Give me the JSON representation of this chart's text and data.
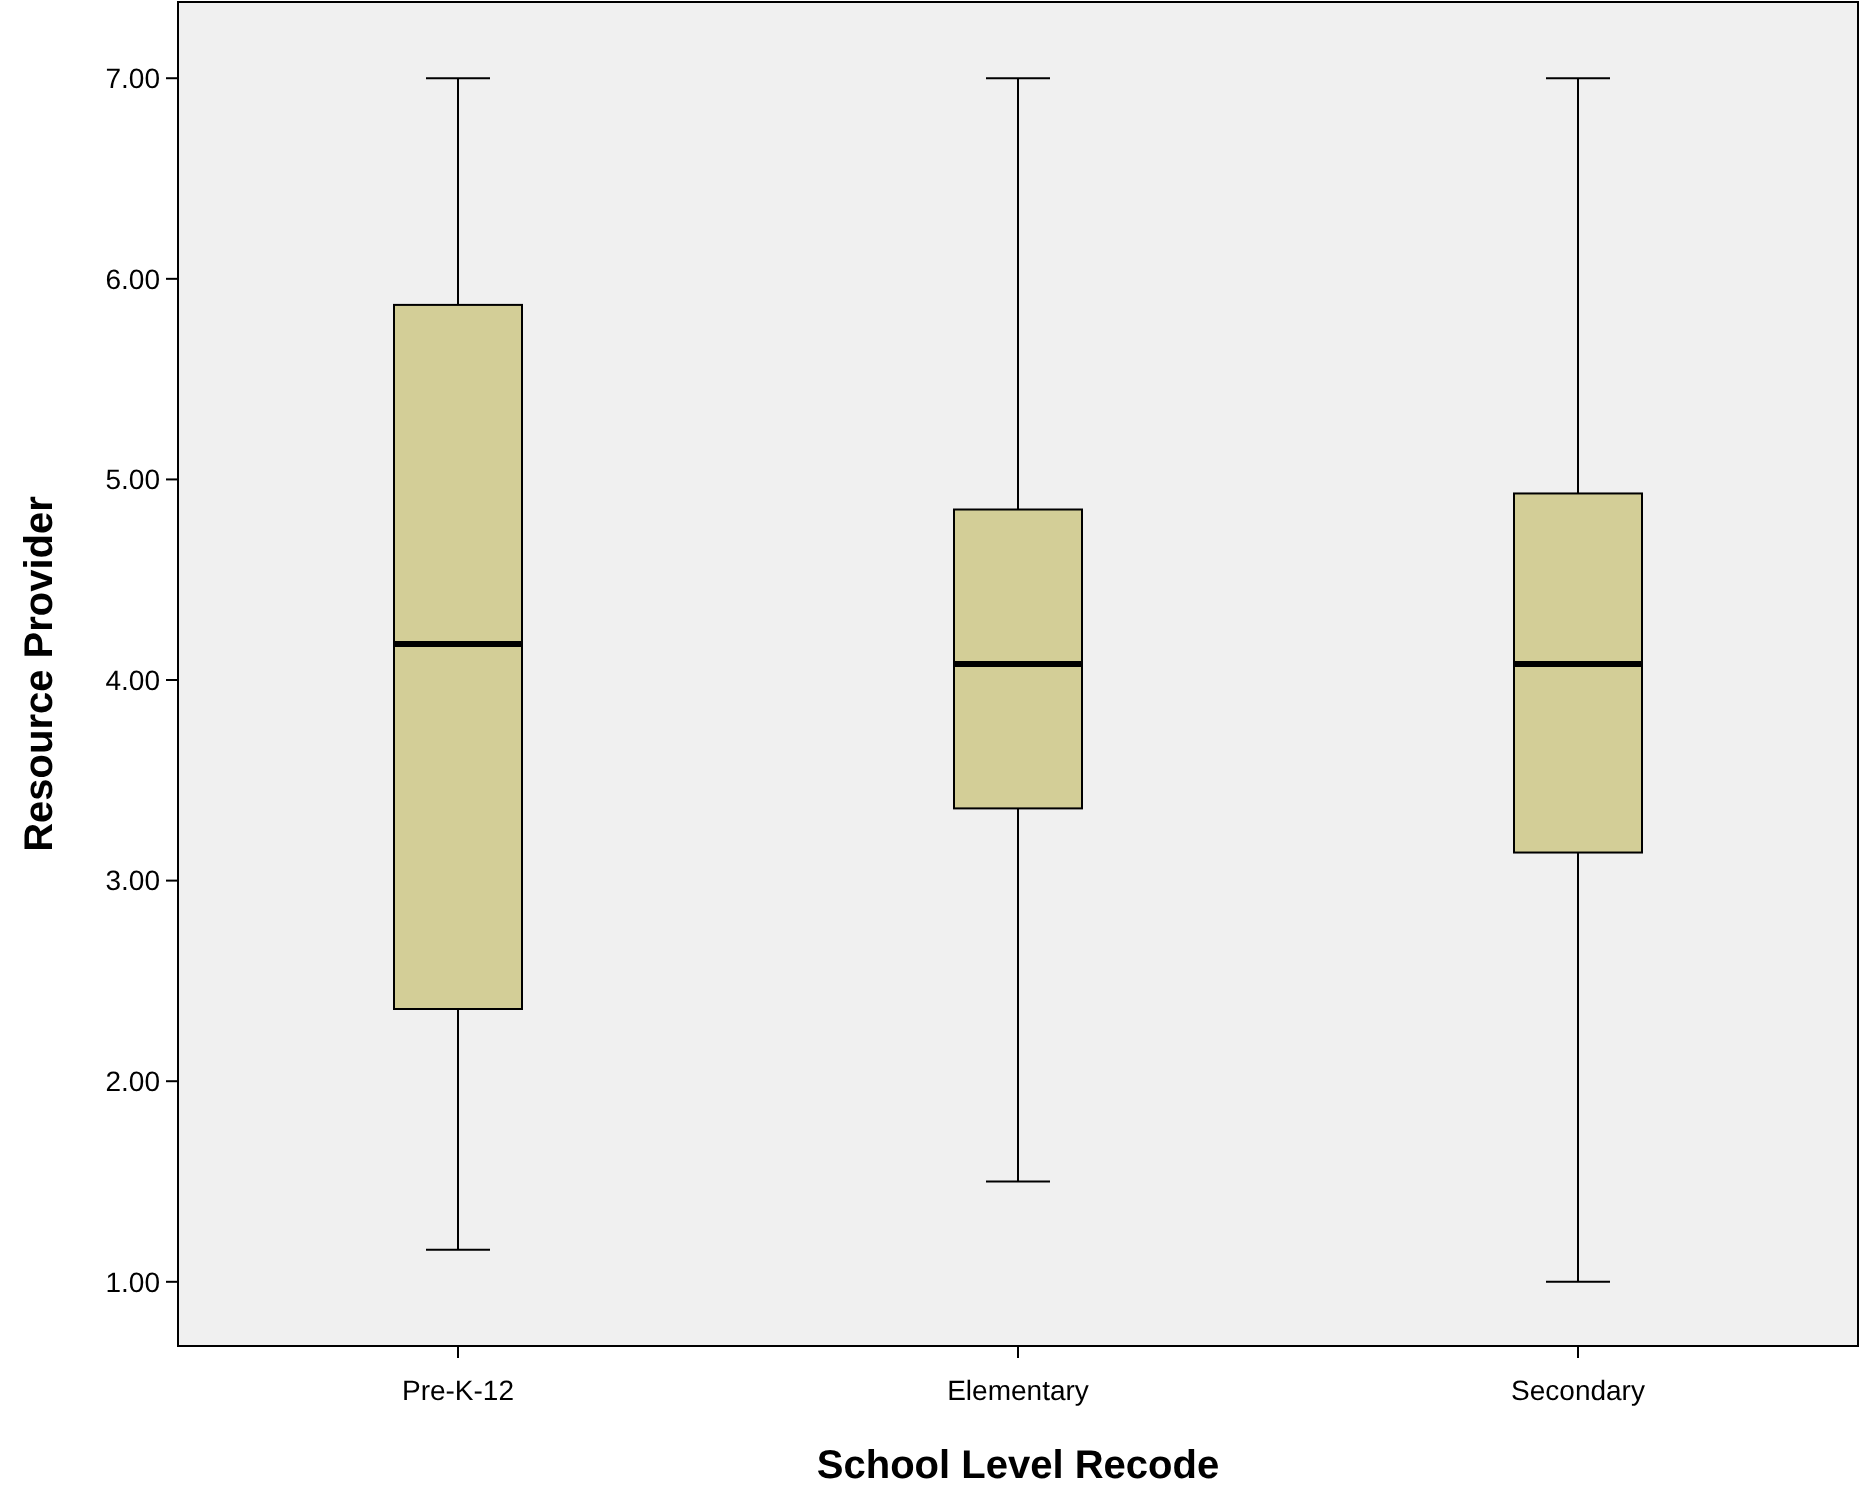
{
  "chart_data": {
    "type": "box",
    "xlabel": "School Level Recode",
    "ylabel": "Resource Provider",
    "categories": [
      "Pre-K-12",
      "Elementary",
      "Secondary"
    ],
    "boxes": [
      {
        "low": 1.16,
        "q1": 2.36,
        "median": 4.18,
        "q3": 5.87,
        "high": 7
      },
      {
        "low": 1.5,
        "q1": 3.36,
        "median": 4.08,
        "q3": 4.85,
        "high": 7
      },
      {
        "low": 1,
        "q1": 3.14,
        "median": 4.08,
        "q3": 4.93,
        "high": 7
      }
    ],
    "color": "#d3ce97",
    "ylim": [
      0.68,
      7.38
    ],
    "yticks": [
      {
        "value": 1,
        "label": "1.00"
      },
      {
        "value": 2,
        "label": "2.00"
      },
      {
        "value": 3,
        "label": "3.00"
      },
      {
        "value": 4,
        "label": "4.00"
      },
      {
        "value": 5,
        "label": "5.00"
      },
      {
        "value": 6,
        "label": "6.00"
      },
      {
        "value": 7,
        "label": "7.00"
      }
    ],
    "grid": false
  }
}
